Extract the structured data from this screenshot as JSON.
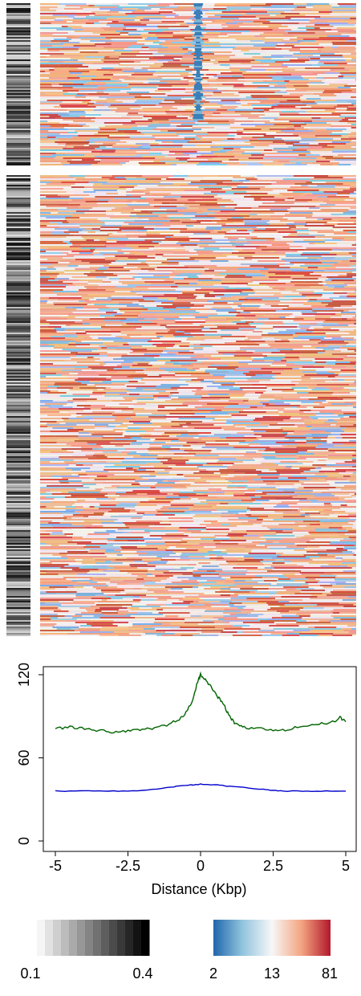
{
  "chart_data": [
    {
      "type": "heatmap",
      "panel": "top cluster heatmap with side annotation strip",
      "columns_x_range": [
        -5,
        5
      ],
      "center_feature": "depletion (blue streak) at distance 0"
    },
    {
      "type": "heatmap",
      "panel": "bottom cluster heatmap with side annotation strip",
      "columns_x_range": [
        -5,
        5
      ]
    },
    {
      "type": "line",
      "xlabel": "Distance (Kbp)",
      "ylabel": "",
      "xlim": [
        -5,
        5
      ],
      "ylim": [
        0,
        120
      ],
      "x_ticks": [
        "-5",
        "-2.5",
        "0",
        "2.5",
        "5"
      ],
      "y_ticks": [
        "0",
        "60",
        "120"
      ],
      "grid": false,
      "series": [
        {
          "color": "#006400",
          "points": [
            [
              -5,
              81
            ],
            [
              -4.5,
              82
            ],
            [
              -4,
              81
            ],
            [
              -3.5,
              80
            ],
            [
              -3,
              78
            ],
            [
              -2.5,
              79
            ],
            [
              -2,
              80
            ],
            [
              -1.5,
              82
            ],
            [
              -1,
              85
            ],
            [
              -0.6,
              90
            ],
            [
              -0.3,
              100
            ],
            [
              -0.1,
              115
            ],
            [
              0,
              120
            ],
            [
              0.2,
              116
            ],
            [
              0.4,
              110
            ],
            [
              0.6,
              104
            ],
            [
              0.8,
              98
            ],
            [
              1,
              90
            ],
            [
              1.2,
              84
            ],
            [
              1.5,
              82
            ],
            [
              2,
              81
            ],
            [
              2.5,
              80
            ],
            [
              3,
              80
            ],
            [
              3.5,
              83
            ],
            [
              4,
              85
            ],
            [
              4.5,
              85
            ],
            [
              4.8,
              89
            ],
            [
              5,
              86
            ]
          ]
        },
        {
          "color": "#0000cc",
          "points": [
            [
              -5,
              36
            ],
            [
              -4,
              36
            ],
            [
              -3,
              36
            ],
            [
              -2,
              36.5
            ],
            [
              -1,
              39
            ],
            [
              -0.5,
              40
            ],
            [
              0,
              41
            ],
            [
              0.5,
              40.5
            ],
            [
              1,
              39.5
            ],
            [
              2,
              37.5
            ],
            [
              2.5,
              36.5
            ],
            [
              3,
              36
            ],
            [
              4,
              36
            ],
            [
              5,
              36
            ]
          ]
        }
      ]
    },
    {
      "type": "colorbar",
      "palette": "grey",
      "tick_labels": [
        "0.1",
        "0.4"
      ],
      "colors": [
        "#f2f2f2",
        "#000000"
      ]
    },
    {
      "type": "colorbar",
      "palette": "blue-white-red",
      "tick_labels": [
        "2",
        "13",
        "81"
      ],
      "colors": [
        "#2166ac",
        "#f7f7f7",
        "#b2182b"
      ]
    }
  ]
}
